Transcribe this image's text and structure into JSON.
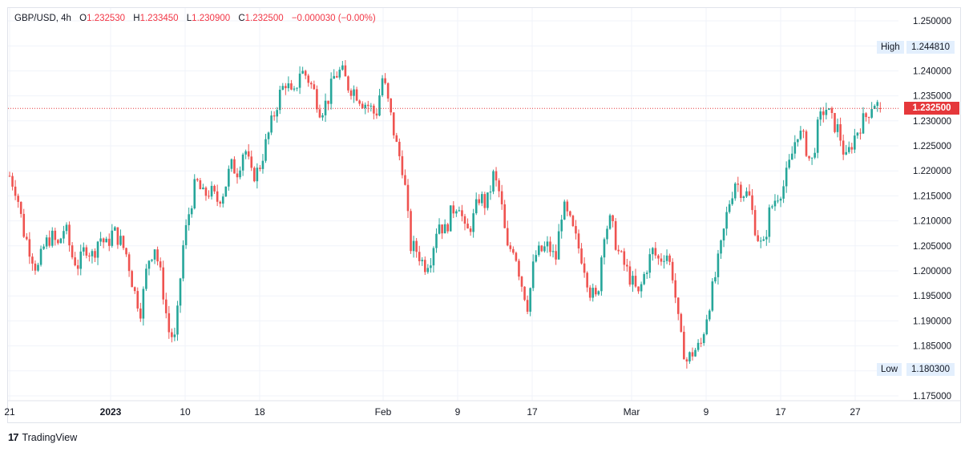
{
  "header": {
    "symbol": "GBP/USD",
    "interval": "4h",
    "open_label": "O",
    "open": "1.232530",
    "high_label": "H",
    "high": "1.233450",
    "low_label": "L",
    "low": "1.230900",
    "close_label": "C",
    "close": "1.232500",
    "change": "−0.000030 (−0.00%)"
  },
  "price_axis": {
    "ticks": [
      "1.250000",
      "1.245000",
      "1.240000",
      "1.235000",
      "1.230000",
      "1.225000",
      "1.220000",
      "1.215000",
      "1.210000",
      "1.205000",
      "1.200000",
      "1.195000",
      "1.190000",
      "1.185000",
      "1.180000",
      "1.175000"
    ],
    "high_label": "High",
    "high_value": "1.244810",
    "low_label": "Low",
    "low_value": "1.180300",
    "last_price": "1.232500"
  },
  "time_axis": {
    "labels": [
      "21",
      "2023",
      "10",
      "18",
      "Feb",
      "9",
      "17",
      "Mar",
      "9",
      "17",
      "27"
    ]
  },
  "brand": {
    "name": "TradingView",
    "logo_icon": "tradingview-logo-icon"
  },
  "colors": {
    "up": "#26a69a",
    "down": "#ef5350",
    "last_price": "#e5383b",
    "grid": "#f0f3fa"
  },
  "chart_data": {
    "type": "candlestick",
    "symbol": "GBP/USD",
    "interval": "4h",
    "ylim": [
      1.175,
      1.25
    ],
    "grid": true,
    "last_price": 1.2325,
    "period_high": 1.24481,
    "period_low": 1.1803,
    "approx_close_path": [
      1.219,
      1.216,
      1.208,
      1.204,
      1.2,
      1.205,
      1.207,
      1.205,
      1.209,
      1.203,
      1.201,
      1.205,
      1.203,
      1.207,
      1.205,
      1.208,
      1.206,
      1.203,
      1.196,
      1.192,
      1.202,
      1.205,
      1.198,
      1.188,
      1.186,
      1.204,
      1.212,
      1.218,
      1.215,
      1.216,
      1.214,
      1.216,
      1.221,
      1.22,
      1.225,
      1.219,
      1.22,
      1.225,
      1.23,
      1.235,
      1.238,
      1.234,
      1.24,
      1.239,
      1.236,
      1.232,
      1.234,
      1.239,
      1.24,
      1.237,
      1.236,
      1.234,
      1.233,
      1.231,
      1.239,
      1.232,
      1.225,
      1.22,
      1.205,
      1.204,
      1.201,
      1.203,
      1.21,
      1.208,
      1.212,
      1.214,
      1.207,
      1.21,
      1.215,
      1.213,
      1.219,
      1.215,
      1.204,
      1.205,
      1.198,
      1.193,
      1.203,
      1.204,
      1.205,
      1.202,
      1.213,
      1.21,
      1.206,
      1.202,
      1.196,
      1.194,
      1.208,
      1.21,
      1.204,
      1.201,
      1.198,
      1.195,
      1.2,
      1.204,
      1.202,
      1.204,
      1.199,
      1.187,
      1.182,
      1.184,
      1.185,
      1.192,
      1.198,
      1.205,
      1.213,
      1.218,
      1.216,
      1.215,
      1.208,
      1.204,
      1.212,
      1.215,
      1.217,
      1.222,
      1.228,
      1.226,
      1.221,
      1.229,
      1.233,
      1.23,
      1.228,
      1.222,
      1.226,
      1.229,
      1.231,
      1.234,
      1.2325
    ]
  }
}
